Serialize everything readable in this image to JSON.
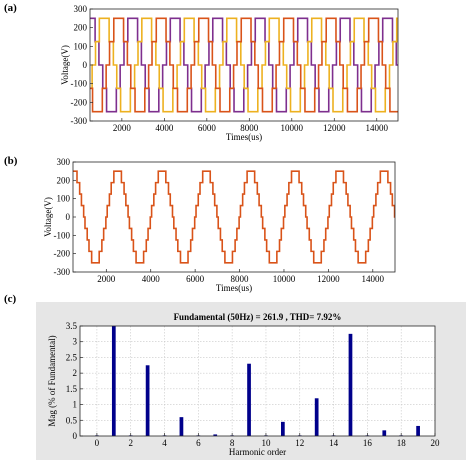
{
  "chart_data": [
    {
      "panel_label": "(a)",
      "type": "line",
      "title": "",
      "xlabel": "Times(us)",
      "ylabel": "Voltage(V)",
      "xlim": [
        500,
        15000
      ],
      "ylim": [
        -300,
        300
      ],
      "xticks": [
        2000,
        4000,
        6000,
        8000,
        10000,
        12000,
        14000
      ],
      "yticks": [
        -300,
        -200,
        -100,
        0,
        100,
        200,
        300
      ],
      "grid": false,
      "waveform": "stepped three-phase voltage, 5 levels, 120° phase shift",
      "period": 2000,
      "levels": [
        -250,
        -125,
        0,
        125,
        250
      ],
      "series": [
        {
          "color": "#7e2f8e",
          "phase_deg": 0
        },
        {
          "color": "#edb120",
          "phase_deg": 120
        },
        {
          "color": "#d95319",
          "phase_deg": 240
        }
      ]
    },
    {
      "panel_label": "(b)",
      "type": "line",
      "title": "",
      "xlabel": "Times(us)",
      "ylabel": "Voltage(V)",
      "xlim": [
        500,
        15000
      ],
      "ylim": [
        -300,
        300
      ],
      "xticks": [
        2000,
        4000,
        6000,
        8000,
        10000,
        12000,
        14000
      ],
      "yticks": [
        -300,
        -200,
        -100,
        0,
        100,
        200,
        300
      ],
      "grid": false,
      "waveform": "stepped voltage, 9 levels",
      "period": 2000,
      "levels": [
        -250,
        -187.5,
        -125,
        -62.5,
        0,
        62.5,
        125,
        187.5,
        250
      ],
      "series": [
        {
          "color": "#d95319",
          "phase_deg": 0
        }
      ]
    },
    {
      "panel_label": "(c)",
      "type": "bar",
      "title": "Fundamental (50Hz) = 261.9 , THD= 7.92%",
      "xlabel": "Harmonic order",
      "ylabel": "Mag (% of Fundamental)",
      "xlim": [
        -1,
        20
      ],
      "ylim": [
        0,
        3.5
      ],
      "xticks": [
        0,
        2,
        4,
        6,
        8,
        10,
        12,
        14,
        16,
        18,
        20
      ],
      "yticks": [
        0,
        0.5,
        1,
        1.5,
        2,
        2.5,
        3,
        3.5
      ],
      "grid": true,
      "bar_color": "#00008b",
      "x": [
        0,
        1,
        2,
        3,
        4,
        5,
        6,
        7,
        8,
        9,
        10,
        11,
        12,
        13,
        14,
        15,
        16,
        17,
        18,
        19
      ],
      "values": [
        0.02,
        3.55,
        0.02,
        2.25,
        0.02,
        0.6,
        0.02,
        0.05,
        0.02,
        2.3,
        0.02,
        0.45,
        0.02,
        1.2,
        0.02,
        3.25,
        0.02,
        0.18,
        0.02,
        0.32
      ],
      "values_note": "fundamental bar clipped at top of axis"
    }
  ]
}
